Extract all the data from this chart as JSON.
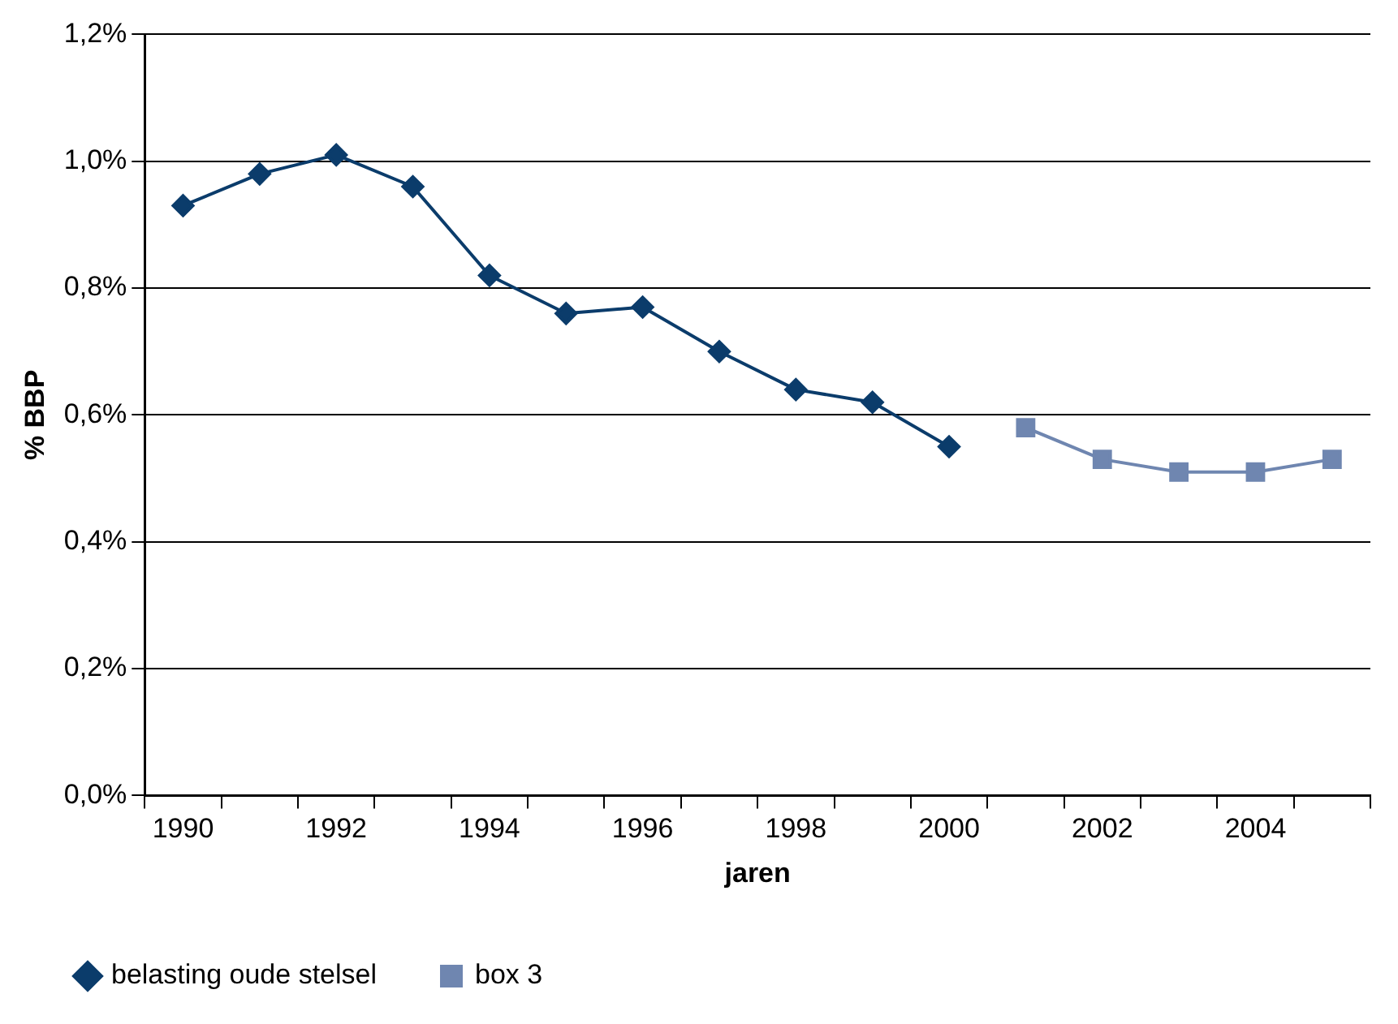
{
  "chart_data": {
    "type": "line",
    "xlabel": "jaren",
    "ylabel": "% BBP",
    "categories": [
      "1990",
      null,
      "1992",
      null,
      "1994",
      null,
      "1996",
      null,
      "1998",
      null,
      "2000",
      null,
      "2002",
      null,
      "2004",
      null
    ],
    "series": [
      {
        "name": "belasting oude stelsel",
        "color": "#0b3c6b",
        "marker": "diamond",
        "values": [
          0.93,
          0.98,
          1.01,
          0.96,
          0.82,
          0.76,
          0.77,
          0.7,
          0.64,
          0.62,
          0.55,
          null,
          null,
          null,
          null,
          null
        ]
      },
      {
        "name": "box 3",
        "color": "#6f86b0",
        "marker": "square",
        "values": [
          null,
          null,
          null,
          null,
          null,
          null,
          null,
          null,
          null,
          null,
          null,
          0.58,
          0.53,
          0.51,
          0.51,
          0.53
        ]
      }
    ],
    "ylim": [
      0,
      1.2
    ],
    "yticks": [
      {
        "value": 0,
        "label": "0,0%"
      },
      {
        "value": 0.2,
        "label": "0,2%"
      },
      {
        "value": 0.4,
        "label": "0,4%"
      },
      {
        "value": 0.6,
        "label": "0,6%"
      },
      {
        "value": 0.8,
        "label": "0,8%"
      },
      {
        "value": 1.0,
        "label": "1,0%"
      },
      {
        "value": 1.2,
        "label": "1,2%"
      }
    ],
    "grid": "y",
    "legend": "bottom",
    "line_style": "solid"
  }
}
